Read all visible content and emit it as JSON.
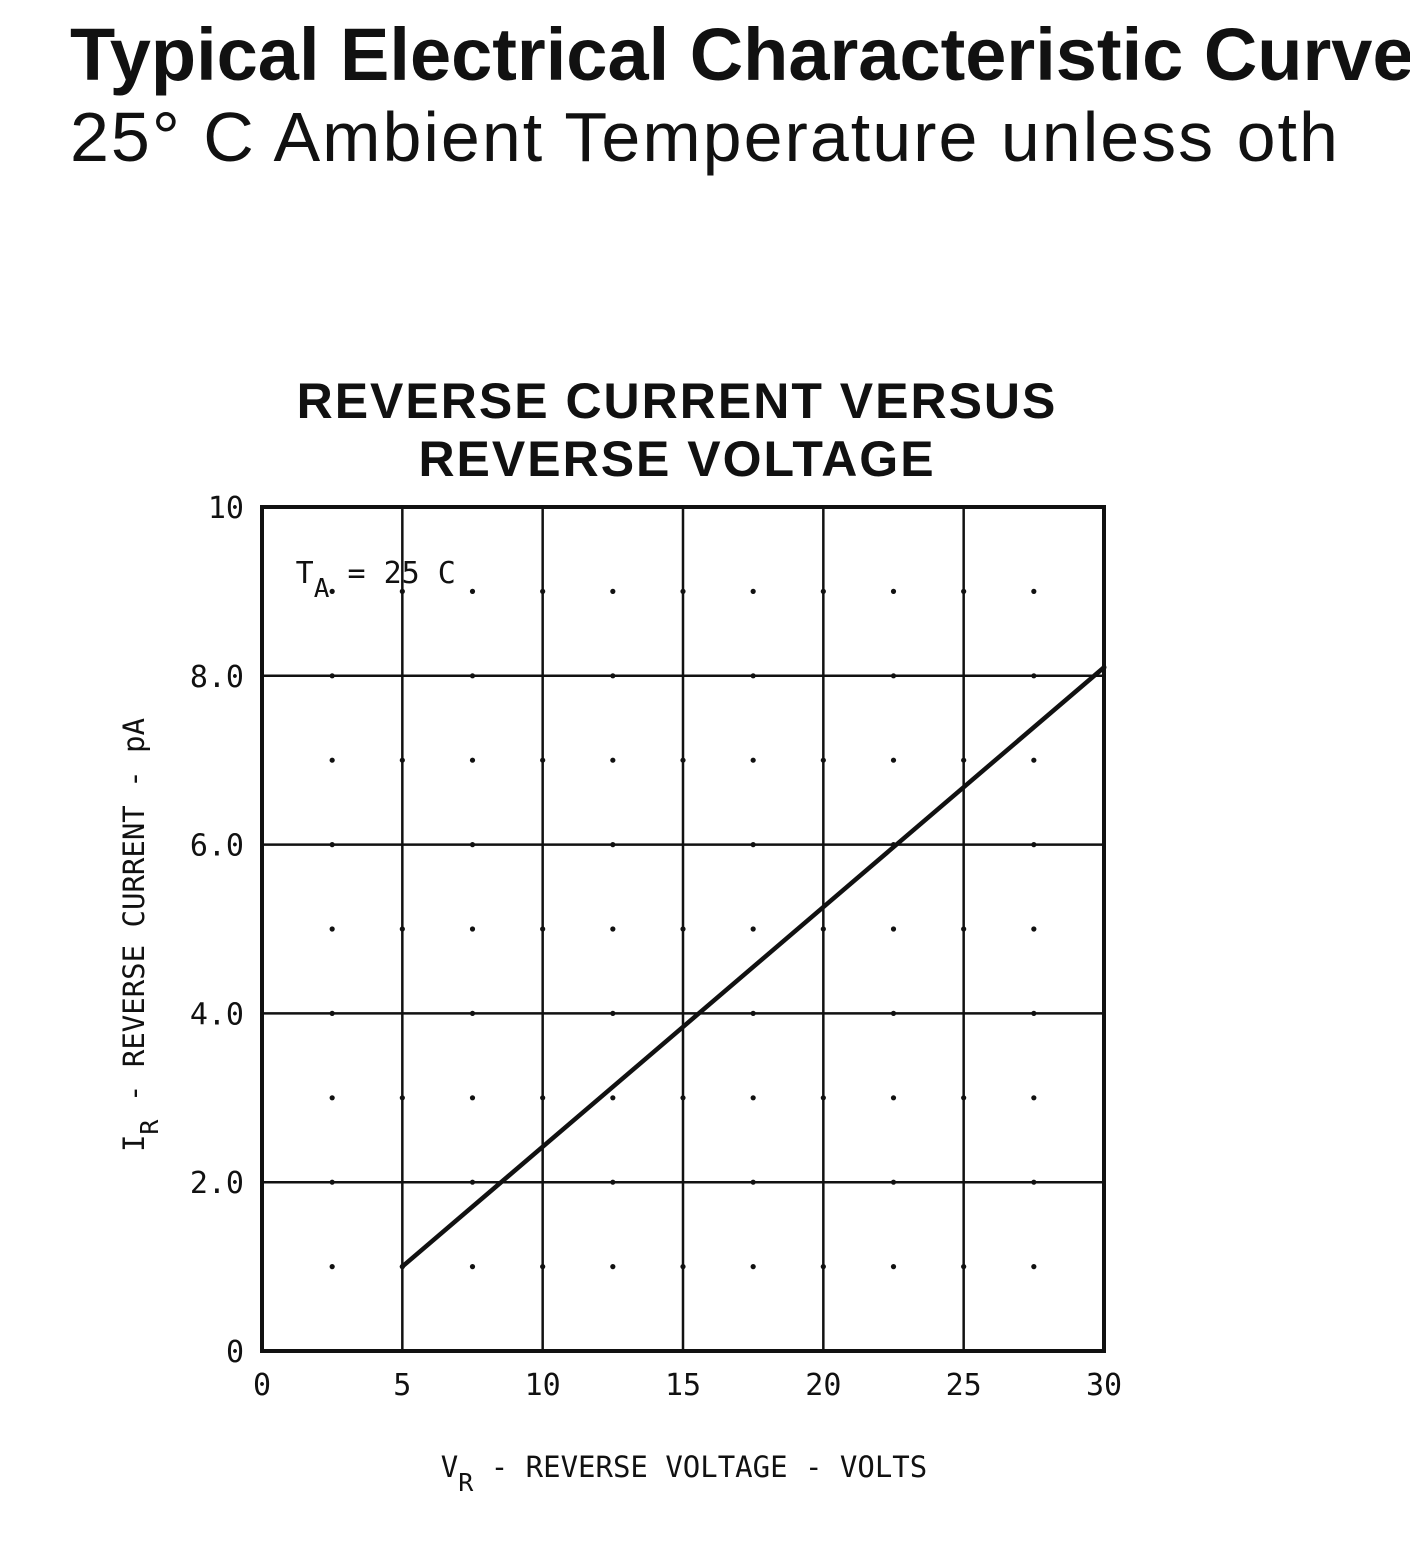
{
  "header": {
    "line1": "Typical Electrical Characteristic Curve",
    "line2": "25° C Ambient Temperature unless oth"
  },
  "chart_data": {
    "type": "line",
    "title_lines": [
      "REVERSE CURRENT VERSUS",
      "REVERSE VOLTAGE"
    ],
    "xlabel": {
      "main": "V",
      "sub": "R",
      "rest": " - REVERSE VOLTAGE - VOLTS"
    },
    "ylabel": {
      "main": "I",
      "sub": "R",
      "rest": " - REVERSE CURRENT - pA"
    },
    "xlim": [
      0,
      30
    ],
    "ylim": [
      0,
      10
    ],
    "x_ticks": [
      0,
      5,
      10,
      15,
      20,
      25,
      30
    ],
    "x_tick_labels": [
      "0",
      "5",
      "10",
      "15",
      "20",
      "25",
      "30"
    ],
    "y_ticks": [
      0,
      2,
      4,
      6,
      8,
      10
    ],
    "y_tick_labels": [
      "0",
      "2.0",
      "4.0",
      "6.0",
      "8.0",
      "10"
    ],
    "grid": true,
    "minor_dot_grid": true,
    "annotation": {
      "main": "T",
      "sub": "A",
      "rest": " = 25 C",
      "x": 1.2,
      "y": 9.1
    },
    "series": [
      {
        "x": [
          5,
          30
        ],
        "y": [
          1.0,
          8.1
        ]
      }
    ],
    "colors": {
      "ink": "#111111",
      "background": "#ffffff"
    }
  }
}
